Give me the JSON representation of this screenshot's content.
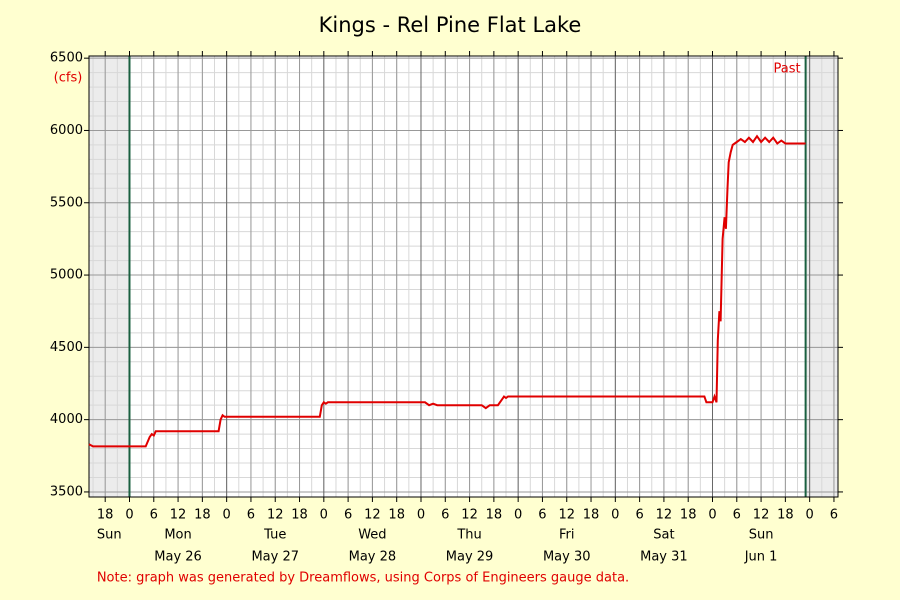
{
  "chart_data": {
    "type": "line",
    "title": "Kings - Rel Pine Flat Lake",
    "y_unit_label": "(cfs)",
    "past_label": "Past",
    "note": "Note: graph was generated by Dreamflows, using Corps of Engineers gauge data.",
    "color": "#e00000",
    "x": [
      14,
      15,
      28,
      29,
      29.5,
      30,
      30.5,
      46,
      46.5,
      47,
      47.5,
      71,
      71.5,
      72,
      72.5,
      73,
      97,
      98,
      99,
      100,
      111,
      112,
      113,
      115,
      116,
      116.5,
      117,
      117.5,
      166,
      166.5,
      168,
      168.5,
      169,
      169.3,
      169.7,
      170,
      170.5,
      171,
      171.3,
      171.7,
      172,
      172.5,
      173,
      174,
      175,
      176,
      177,
      178,
      179,
      180,
      181,
      182,
      183,
      184,
      185,
      186,
      191
    ],
    "values": [
      3830,
      3815,
      3815,
      3880,
      3900,
      3890,
      3920,
      3920,
      4000,
      4030,
      4020,
      4020,
      4100,
      4120,
      4110,
      4120,
      4120,
      4100,
      4110,
      4100,
      4100,
      4080,
      4100,
      4100,
      4140,
      4160,
      4150,
      4160,
      4160,
      4120,
      4120,
      4160,
      4120,
      4550,
      4750,
      4680,
      5250,
      5400,
      5320,
      5600,
      5780,
      5850,
      5900,
      5920,
      5940,
      5920,
      5950,
      5920,
      5960,
      5920,
      5950,
      5920,
      5950,
      5910,
      5930,
      5910,
      5910
    ],
    "xlim": [
      14,
      199
    ],
    "ylim": [
      3465,
      6515
    ],
    "yticks": [
      3500,
      4000,
      4500,
      5000,
      5500,
      6000,
      6500
    ],
    "xticks": [
      {
        "value": 18,
        "label": "18"
      },
      {
        "value": 24,
        "label": "0"
      },
      {
        "value": 30,
        "label": "6"
      },
      {
        "value": 36,
        "label": "12"
      },
      {
        "value": 42,
        "label": "18"
      },
      {
        "value": 48,
        "label": "0"
      },
      {
        "value": 54,
        "label": "6"
      },
      {
        "value": 60,
        "label": "12"
      },
      {
        "value": 66,
        "label": "18"
      },
      {
        "value": 72,
        "label": "0"
      },
      {
        "value": 78,
        "label": "6"
      },
      {
        "value": 84,
        "label": "12"
      },
      {
        "value": 90,
        "label": "18"
      },
      {
        "value": 96,
        "label": "0"
      },
      {
        "value": 102,
        "label": "6"
      },
      {
        "value": 108,
        "label": "12"
      },
      {
        "value": 114,
        "label": "18"
      },
      {
        "value": 120,
        "label": "0"
      },
      {
        "value": 126,
        "label": "6"
      },
      {
        "value": 132,
        "label": "12"
      },
      {
        "value": 138,
        "label": "18"
      },
      {
        "value": 144,
        "label": "0"
      },
      {
        "value": 150,
        "label": "6"
      },
      {
        "value": 156,
        "label": "12"
      },
      {
        "value": 162,
        "label": "18"
      },
      {
        "value": 168,
        "label": "0"
      },
      {
        "value": 174,
        "label": "6"
      },
      {
        "value": 180,
        "label": "12"
      },
      {
        "value": 186,
        "label": "18"
      },
      {
        "value": 192,
        "label": "0"
      },
      {
        "value": 198,
        "label": "6"
      }
    ],
    "day_labels": [
      {
        "value": 19,
        "label": "Sun"
      },
      {
        "value": 36,
        "label": "Mon"
      },
      {
        "value": 60,
        "label": "Tue"
      },
      {
        "value": 84,
        "label": "Wed"
      },
      {
        "value": 108,
        "label": "Thu"
      },
      {
        "value": 132,
        "label": "Fri"
      },
      {
        "value": 156,
        "label": "Sat"
      },
      {
        "value": 180,
        "label": "Sun"
      }
    ],
    "date_labels": [
      {
        "value": 36,
        "label": "May 26"
      },
      {
        "value": 60,
        "label": "May 27"
      },
      {
        "value": 84,
        "label": "May 28"
      },
      {
        "value": 108,
        "label": "May 29"
      },
      {
        "value": 132,
        "label": "May 30"
      },
      {
        "value": 156,
        "label": "May 31"
      },
      {
        "value": 180,
        "label": "Jun 1"
      }
    ],
    "past_range": [
      24,
      191
    ],
    "y_minor_step": 100,
    "x_minor_step": 3,
    "grid": true
  }
}
